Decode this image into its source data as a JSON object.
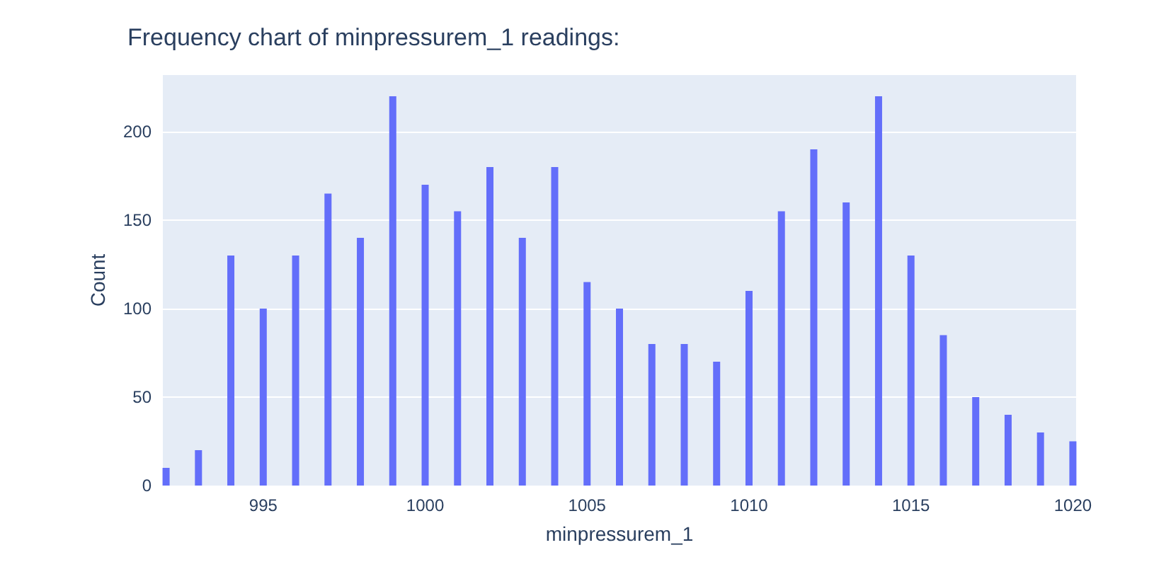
{
  "chart_data": {
    "type": "bar",
    "title": "Frequency chart of minpressurem_1 readings:",
    "xlabel": "minpressurem_1",
    "ylabel": "Count",
    "x": [
      992,
      993,
      994,
      995,
      996,
      997,
      998,
      999,
      1000,
      1001,
      1002,
      1003,
      1004,
      1005,
      1006,
      1007,
      1008,
      1009,
      1010,
      1011,
      1012,
      1013,
      1014,
      1015,
      1016,
      1017,
      1018,
      1019,
      1020
    ],
    "values": [
      10,
      20,
      130,
      100,
      130,
      165,
      140,
      220,
      170,
      155,
      180,
      140,
      180,
      115,
      100,
      80,
      80,
      70,
      110,
      155,
      190,
      160,
      220,
      130,
      85,
      50,
      40,
      30,
      25
    ],
    "color": "#636efa",
    "xlim": [
      991.9,
      1020.1
    ],
    "xticks": [
      995,
      1000,
      1005,
      1010,
      1015,
      1020
    ],
    "ylim": [
      0,
      232
    ],
    "yticks": [
      0,
      50,
      100,
      150,
      200
    ],
    "grid": "y"
  }
}
